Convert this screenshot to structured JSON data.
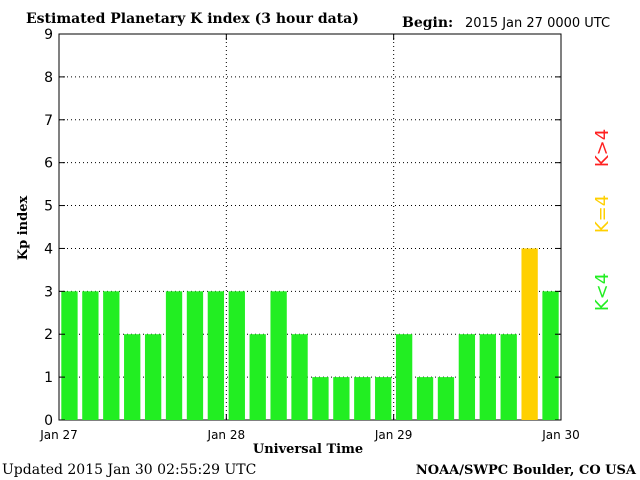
{
  "header": {
    "title": "Estimated Planetary K index (3 hour data)",
    "begin_label": "Begin:",
    "begin_value": "2015 Jan 27 0000 UTC"
  },
  "footer": {
    "updated": "Updated 2015 Jan 30 02:55:29 UTC",
    "source": "NOAA/SWPC Boulder, CO USA"
  },
  "legend": {
    "high": {
      "label": "K>4",
      "color": "#ff2020"
    },
    "mid": {
      "label": "K=4",
      "color": "#ffd000"
    },
    "low": {
      "label": "K<4",
      "color": "#22ee22"
    }
  },
  "chart_data": {
    "type": "bar",
    "title": "Estimated Planetary K index (3 hour data)",
    "xlabel": "Universal Time",
    "ylabel": "Kp index",
    "ylim": [
      0,
      9
    ],
    "yticks": [
      0,
      1,
      2,
      3,
      4,
      5,
      6,
      7,
      8,
      9
    ],
    "xticks": [
      "Jan 27",
      "Jan 28",
      "Jan 29",
      "Jan 30"
    ],
    "grid": true,
    "interval_hours": 3,
    "values": [
      3,
      3,
      3,
      2,
      2,
      3,
      3,
      3,
      3,
      2,
      3,
      2,
      1,
      1,
      1,
      1,
      2,
      1,
      1,
      2,
      2,
      2,
      4,
      3
    ],
    "colors": {
      "low": "#22ee22",
      "mid": "#ffd000",
      "high": "#ff2020"
    }
  }
}
